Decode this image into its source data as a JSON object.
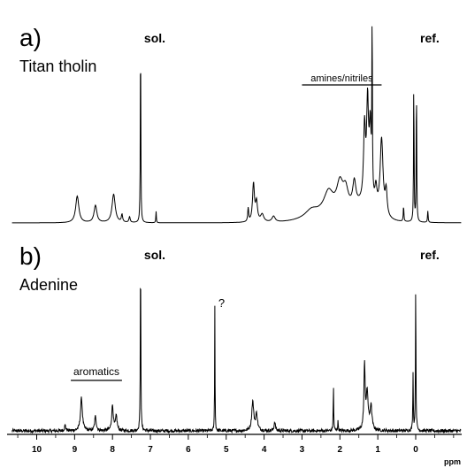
{
  "chart_data": {
    "type": "line",
    "xlabel": "ppm",
    "x_reversed": true,
    "xlim": [
      -1.2,
      10.7
    ],
    "x_ticks": [
      10,
      9,
      8,
      7,
      6,
      5,
      4,
      3,
      2,
      1,
      0
    ],
    "x_tick_labels": [
      "10",
      "9",
      "8",
      "7",
      "6",
      "5",
      "4",
      "3",
      "2",
      "1",
      "0"
    ],
    "panels": [
      {
        "panel_label": "a)",
        "sample_label": "Titan tholin",
        "solvent_label": "sol.",
        "solvent_ppm": 7.26,
        "reference_label": "ref.",
        "reference_ppm": 0.0,
        "annotations": [
          {
            "text": "amines/nitriles",
            "from": 3.0,
            "to": 0.9
          }
        ],
        "peaks": [
          {
            "x": 8.93,
            "y": 0.14,
            "w": 0.05
          },
          {
            "x": 8.45,
            "y": 0.09,
            "w": 0.045
          },
          {
            "x": 7.97,
            "y": 0.15,
            "w": 0.05
          },
          {
            "x": 7.75,
            "y": 0.04,
            "w": 0.02
          },
          {
            "x": 7.55,
            "y": 0.03,
            "w": 0.02
          },
          {
            "x": 7.26,
            "y": 1.0,
            "w": 0.008
          },
          {
            "x": 6.85,
            "y": 0.06,
            "w": 0.008
          },
          {
            "x": 4.42,
            "y": 0.07,
            "w": 0.015
          },
          {
            "x": 4.28,
            "y": 0.2,
            "w": 0.03
          },
          {
            "x": 4.2,
            "y": 0.1,
            "w": 0.03
          },
          {
            "x": 4.05,
            "y": 0.04,
            "w": 0.05
          },
          {
            "x": 3.75,
            "y": 0.03,
            "w": 0.05
          },
          {
            "x": 2.75,
            "y": 0.04,
            "w": 0.2
          },
          {
            "x": 2.3,
            "y": 0.11,
            "w": 0.15
          },
          {
            "x": 2.0,
            "y": 0.14,
            "w": 0.1
          },
          {
            "x": 1.85,
            "y": 0.1,
            "w": 0.08
          },
          {
            "x": 1.62,
            "y": 0.13,
            "w": 0.05
          },
          {
            "x": 1.35,
            "y": 0.38,
            "w": 0.03
          },
          {
            "x": 1.27,
            "y": 0.5,
            "w": 0.03
          },
          {
            "x": 1.2,
            "y": 0.38,
            "w": 0.03
          },
          {
            "x": 1.15,
            "y": 0.9,
            "w": 0.008
          },
          {
            "x": 1.05,
            "y": 0.1,
            "w": 0.03
          },
          {
            "x": 0.9,
            "y": 0.4,
            "w": 0.045
          },
          {
            "x": 0.78,
            "y": 0.13,
            "w": 0.03
          },
          {
            "x": 0.32,
            "y": 0.08,
            "w": 0.01
          },
          {
            "x": 0.05,
            "y": 0.74,
            "w": 0.008
          },
          {
            "x": -0.02,
            "y": 0.72,
            "w": 0.008
          },
          {
            "x": -0.32,
            "y": 0.06,
            "w": 0.01
          }
        ],
        "broad_humps": [
          {
            "x": 2.0,
            "y": 0.05,
            "w": 0.9
          },
          {
            "x": 1.3,
            "y": 0.06,
            "w": 0.35
          }
        ]
      },
      {
        "panel_label": "b)",
        "sample_label": "Adenine",
        "solvent_label": "sol.",
        "solvent_ppm": 7.26,
        "reference_label": "ref.",
        "reference_ppm": 0.0,
        "annotations": [
          {
            "text": "aromatics",
            "from": 9.1,
            "to": 7.75
          },
          {
            "text": "?",
            "at": 5.3
          }
        ],
        "peaks": [
          {
            "x": 9.25,
            "y": 0.03,
            "w": 0.02
          },
          {
            "x": 8.82,
            "y": 0.18,
            "w": 0.03
          },
          {
            "x": 8.45,
            "y": 0.08,
            "w": 0.025
          },
          {
            "x": 8.0,
            "y": 0.14,
            "w": 0.025
          },
          {
            "x": 7.9,
            "y": 0.08,
            "w": 0.025
          },
          {
            "x": 7.26,
            "y": 1.0,
            "w": 0.008
          },
          {
            "x": 5.3,
            "y": 0.7,
            "w": 0.006
          },
          {
            "x": 4.3,
            "y": 0.16,
            "w": 0.03
          },
          {
            "x": 4.2,
            "y": 0.09,
            "w": 0.03
          },
          {
            "x": 3.72,
            "y": 0.05,
            "w": 0.02
          },
          {
            "x": 2.17,
            "y": 0.24,
            "w": 0.008
          },
          {
            "x": 2.05,
            "y": 0.05,
            "w": 0.01
          },
          {
            "x": 1.35,
            "y": 0.35,
            "w": 0.02
          },
          {
            "x": 1.28,
            "y": 0.2,
            "w": 0.03
          },
          {
            "x": 1.18,
            "y": 0.13,
            "w": 0.03
          },
          {
            "x": 0.07,
            "y": 0.32,
            "w": 0.008
          },
          {
            "x": 0.0,
            "y": 0.8,
            "w": 0.008
          }
        ],
        "noise_amplitude": 0.009
      }
    ]
  }
}
